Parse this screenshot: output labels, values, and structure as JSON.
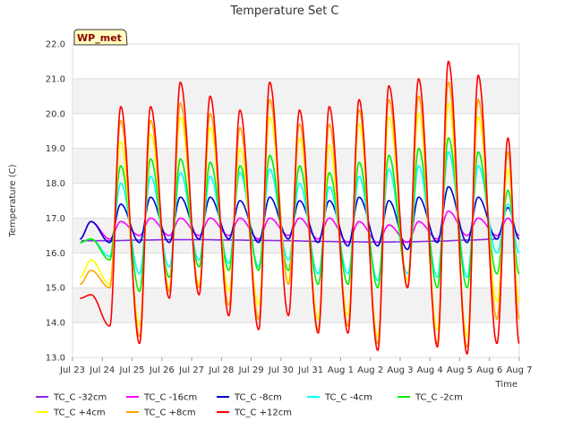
{
  "chart_data": {
    "type": "line",
    "title": "Temperature Set C",
    "xlabel": "Time",
    "ylabel": "Temperature (C)",
    "ylim": [
      13.0,
      22.0
    ],
    "yticks": [
      13.0,
      14.0,
      15.0,
      16.0,
      17.0,
      18.0,
      19.0,
      20.0,
      21.0,
      22.0
    ],
    "xlim": [
      "Jul 23",
      "Aug 7"
    ],
    "xticks": [
      "Jul 23",
      "Jul 24",
      "Jul 25",
      "Jul 26",
      "Jul 27",
      "Jul 28",
      "Jul 29",
      "Jul 30",
      "Jul 31",
      "Aug 1",
      "Aug 2",
      "Aug 3",
      "Aug 4",
      "Aug 5",
      "Aug 6",
      "Aug 7"
    ],
    "badge": "WP_met",
    "grid": "horizontal-bands",
    "legend_position": "bottom",
    "series": [
      {
        "name": "TC_C -32cm",
        "color": "#8a2be2",
        "x": [
          "Jul 23",
          "Jul 24",
          "Jul 25",
          "Jul 26",
          "Jul 27",
          "Jul 28",
          "Jul 29",
          "Jul 30",
          "Jul 31",
          "Aug 1",
          "Aug 2",
          "Aug 3",
          "Aug 4",
          "Aug 5",
          "Aug 6"
        ],
        "values": [
          16.35,
          16.35,
          16.37,
          16.38,
          16.38,
          16.37,
          16.36,
          16.35,
          16.33,
          16.32,
          16.31,
          16.32,
          16.34,
          16.37,
          16.4
        ]
      },
      {
        "name": "TC_C -16cm",
        "color": "#ff00ff",
        "x": [
          "Jul 23",
          "Jul 24",
          "Jul 25",
          "Jul 26",
          "Jul 27",
          "Jul 28",
          "Jul 29",
          "Jul 30",
          "Jul 31",
          "Aug 1",
          "Aug 2",
          "Aug 3",
          "Aug 4",
          "Aug 5",
          "Aug 6"
        ],
        "mins": [
          16.4,
          16.4,
          16.5,
          16.5,
          16.5,
          16.5,
          16.4,
          16.5,
          16.4,
          16.3,
          16.3,
          16.3,
          16.4,
          16.5,
          16.5
        ],
        "maxs": [
          16.9,
          16.9,
          17.0,
          17.0,
          17.0,
          17.0,
          17.0,
          17.0,
          17.0,
          16.9,
          16.8,
          16.9,
          17.2,
          17.0,
          17.0
        ]
      },
      {
        "name": "TC_C -8cm",
        "color": "#0000cd",
        "x": [
          "Jul 23",
          "Jul 24",
          "Jul 25",
          "Jul 26",
          "Jul 27",
          "Jul 28",
          "Jul 29",
          "Jul 30",
          "Jul 31",
          "Aug 1",
          "Aug 2",
          "Aug 3",
          "Aug 4",
          "Aug 5",
          "Aug 6"
        ],
        "mins": [
          16.4,
          16.3,
          16.3,
          16.3,
          16.4,
          16.4,
          16.3,
          16.4,
          16.3,
          16.2,
          16.2,
          16.1,
          16.3,
          16.3,
          16.4
        ],
        "maxs": [
          16.9,
          17.4,
          17.6,
          17.6,
          17.6,
          17.5,
          17.6,
          17.5,
          17.5,
          17.6,
          17.5,
          17.6,
          17.9,
          17.6,
          17.3
        ]
      },
      {
        "name": "TC_C -4cm",
        "color": "#00ffff",
        "x": [
          "Jul 23",
          "Jul 24",
          "Jul 25",
          "Jul 26",
          "Jul 27",
          "Jul 28",
          "Jul 29",
          "Jul 30",
          "Jul 31",
          "Aug 1",
          "Aug 2",
          "Aug 3",
          "Aug 4",
          "Aug 5",
          "Aug 6"
        ],
        "mins": [
          16.3,
          15.9,
          15.4,
          15.6,
          15.8,
          15.7,
          15.6,
          15.8,
          15.4,
          15.4,
          15.2,
          15.4,
          15.3,
          15.3,
          16.0
        ],
        "maxs": [
          16.4,
          18.0,
          18.2,
          18.3,
          18.2,
          18.3,
          18.4,
          18.0,
          17.9,
          18.2,
          18.4,
          18.5,
          18.9,
          18.5,
          17.4
        ]
      },
      {
        "name": "TC_C -2cm",
        "color": "#00ee00",
        "x": [
          "Jul 23",
          "Jul 24",
          "Jul 25",
          "Jul 26",
          "Jul 27",
          "Jul 28",
          "Jul 29",
          "Jul 30",
          "Jul 31",
          "Aug 1",
          "Aug 2",
          "Aug 3",
          "Aug 4",
          "Aug 5",
          "Aug 6"
        ],
        "mins": [
          16.3,
          15.8,
          14.9,
          15.3,
          15.6,
          15.5,
          15.5,
          15.5,
          15.1,
          15.1,
          15.0,
          15.2,
          15.0,
          15.0,
          15.4
        ],
        "maxs": [
          16.4,
          18.5,
          18.7,
          18.7,
          18.6,
          18.5,
          18.8,
          18.5,
          18.3,
          18.6,
          18.8,
          19.0,
          19.3,
          18.9,
          17.8
        ]
      },
      {
        "name": "TC_C +4cm",
        "color": "#ffff00",
        "x": [
          "Jul 23",
          "Jul 24",
          "Jul 25",
          "Jul 26",
          "Jul 27",
          "Jul 28",
          "Jul 29",
          "Jul 30",
          "Jul 31",
          "Aug 1",
          "Aug 2",
          "Aug 3",
          "Aug 4",
          "Aug 5",
          "Aug 6"
        ],
        "mins": [
          15.3,
          15.1,
          13.9,
          15.0,
          15.1,
          14.9,
          14.5,
          15.2,
          14.1,
          14.2,
          13.6,
          15.2,
          13.8,
          13.6,
          14.6
        ],
        "maxs": [
          15.8,
          19.2,
          19.4,
          19.9,
          19.6,
          19.0,
          19.9,
          19.3,
          19.1,
          19.7,
          19.9,
          20.0,
          20.3,
          19.9,
          18.4
        ]
      },
      {
        "name": "TC_C +8cm",
        "color": "#ffa500",
        "x": [
          "Jul 23",
          "Jul 24",
          "Jul 25",
          "Jul 26",
          "Jul 27",
          "Jul 28",
          "Jul 29",
          "Jul 30",
          "Jul 31",
          "Aug 1",
          "Aug 2",
          "Aug 3",
          "Aug 4",
          "Aug 5",
          "Aug 6"
        ],
        "mins": [
          15.1,
          15.0,
          13.6,
          14.9,
          15.0,
          14.5,
          14.1,
          15.1,
          13.8,
          13.9,
          13.4,
          15.0,
          13.4,
          13.3,
          14.1
        ],
        "maxs": [
          15.5,
          19.8,
          19.8,
          20.3,
          20.0,
          19.6,
          20.4,
          19.7,
          19.7,
          20.1,
          20.4,
          20.5,
          20.9,
          20.4,
          18.9
        ]
      },
      {
        "name": "TC_C +12cm",
        "color": "#ff0000",
        "x": [
          "Jul 23",
          "Jul 24",
          "Jul 25",
          "Jul 26",
          "Jul 27",
          "Jul 28",
          "Jul 29",
          "Jul 30",
          "Jul 31",
          "Aug 1",
          "Aug 2",
          "Aug 3",
          "Aug 4",
          "Aug 5",
          "Aug 6"
        ],
        "mins": [
          14.7,
          13.9,
          13.4,
          14.7,
          14.8,
          14.2,
          13.8,
          14.2,
          13.7,
          13.7,
          13.2,
          15.0,
          13.3,
          13.1,
          13.4
        ],
        "maxs": [
          14.8,
          20.2,
          20.2,
          20.9,
          20.5,
          20.1,
          20.9,
          20.1,
          20.2,
          20.4,
          20.8,
          21.0,
          21.5,
          21.1,
          19.3
        ]
      }
    ]
  }
}
